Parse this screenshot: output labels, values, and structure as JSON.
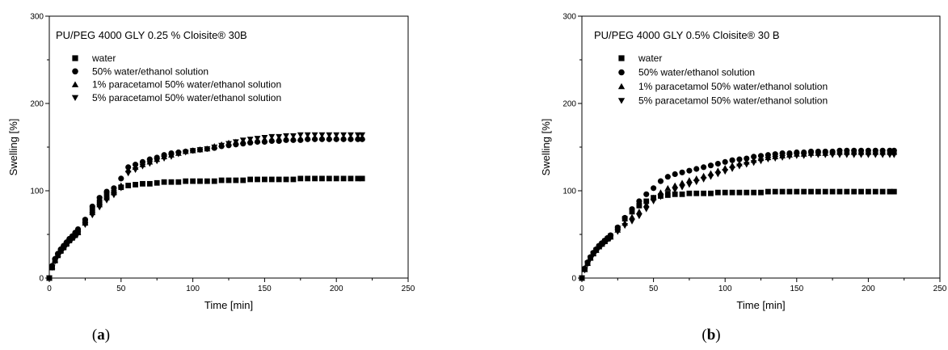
{
  "chart_data": [
    {
      "type": "scatter",
      "panel_label": "a",
      "title": "PU/PEG 4000 GLY 0.25 % Cloisite® 30B",
      "xlabel": "Time [min]",
      "ylabel": "Swelling [%]",
      "xlim": [
        0,
        250
      ],
      "ylim": [
        0,
        300
      ],
      "xticks": [
        "0",
        "50",
        "100",
        "150",
        "200",
        "250"
      ],
      "yticks": [
        "0",
        "100",
        "200",
        "300"
      ],
      "grid": false,
      "legend_position": "top-left",
      "x": [
        0,
        2,
        4,
        6,
        8,
        10,
        12,
        14,
        16,
        18,
        20,
        25,
        30,
        35,
        40,
        45,
        50,
        55,
        60,
        65,
        70,
        75,
        80,
        85,
        90,
        95,
        100,
        105,
        110,
        115,
        120,
        125,
        130,
        135,
        140,
        145,
        150,
        155,
        160,
        165,
        170,
        175,
        180,
        185,
        190,
        195,
        200,
        205,
        210,
        215,
        218
      ],
      "series": [
        {
          "name": "water",
          "marker": "square",
          "values": [
            0,
            12,
            20,
            26,
            31,
            35,
            39,
            43,
            46,
            49,
            53,
            64,
            78,
            87,
            95,
            98,
            104,
            106,
            107,
            108,
            108,
            109,
            110,
            110,
            110,
            111,
            111,
            111,
            111,
            111,
            112,
            112,
            112,
            112,
            113,
            113,
            113,
            113,
            113,
            113,
            113,
            114,
            114,
            114,
            114,
            114,
            114,
            114,
            114,
            114,
            114
          ]
        },
        {
          "name": "50% water/ethanol solution",
          "marker": "circle",
          "values": [
            0,
            14,
            22,
            28,
            33,
            37,
            41,
            45,
            48,
            52,
            56,
            67,
            82,
            92,
            99,
            103,
            114,
            127,
            130,
            133,
            136,
            138,
            141,
            143,
            144,
            145,
            146,
            147,
            148,
            149,
            151,
            152,
            153,
            154,
            155,
            156,
            156,
            157,
            157,
            158,
            158,
            158,
            159,
            159,
            159,
            159,
            159,
            159,
            159,
            159,
            159
          ]
        },
        {
          "name": "1% paracetamol 50% water/ethanol solution",
          "marker": "triangle-up",
          "values": [
            0,
            13,
            21,
            27,
            32,
            36,
            40,
            44,
            47,
            50,
            52,
            63,
            75,
            84,
            92,
            98,
            106,
            124,
            127,
            130,
            133,
            136,
            139,
            141,
            143,
            145,
            146,
            147,
            148,
            151,
            153,
            155,
            156,
            157,
            158,
            158,
            159,
            159,
            160,
            160,
            160,
            160,
            161,
            161,
            161,
            161,
            161,
            161,
            161,
            161,
            161
          ]
        },
        {
          "name": "5% paracetamol 50% water/ethanol solution",
          "marker": "triangle-down",
          "values": [
            0,
            12,
            19,
            25,
            30,
            34,
            38,
            42,
            45,
            48,
            51,
            61,
            72,
            81,
            89,
            95,
            103,
            120,
            124,
            128,
            131,
            134,
            137,
            139,
            142,
            144,
            146,
            147,
            148,
            150,
            152,
            154,
            156,
            158,
            159,
            160,
            161,
            162,
            162,
            163,
            163,
            164,
            164,
            164,
            164,
            164,
            164,
            164,
            164,
            164,
            164
          ]
        }
      ]
    },
    {
      "type": "scatter",
      "panel_label": "b",
      "title": "PU/PEG 4000 GLY 0.5% Cloisite® 30 B",
      "xlabel": "Time [min]",
      "ylabel": "Swelling [%]",
      "xlim": [
        0,
        250
      ],
      "ylim": [
        0,
        300
      ],
      "xticks": [
        "0",
        "50",
        "100",
        "150",
        "200",
        "250"
      ],
      "yticks": [
        "0",
        "100",
        "200",
        "300"
      ],
      "grid": false,
      "legend_position": "top-left",
      "x": [
        0,
        2,
        4,
        6,
        8,
        10,
        12,
        14,
        16,
        18,
        20,
        25,
        30,
        35,
        40,
        45,
        50,
        55,
        60,
        65,
        70,
        75,
        80,
        85,
        90,
        95,
        100,
        105,
        110,
        115,
        120,
        125,
        130,
        135,
        140,
        145,
        150,
        155,
        160,
        165,
        170,
        175,
        180,
        185,
        190,
        195,
        200,
        205,
        210,
        215,
        218
      ],
      "series": [
        {
          "name": "water",
          "marker": "square",
          "values": [
            0,
            10,
            17,
            23,
            28,
            32,
            36,
            39,
            42,
            45,
            48,
            57,
            68,
            76,
            83,
            88,
            92,
            94,
            95,
            96,
            96,
            97,
            97,
            97,
            97,
            98,
            98,
            98,
            98,
            98,
            98,
            98,
            99,
            99,
            99,
            99,
            99,
            99,
            99,
            99,
            99,
            99,
            99,
            99,
            99,
            99,
            99,
            99,
            99,
            99,
            99
          ]
        },
        {
          "name": "50% water/ethanol solution",
          "marker": "circle",
          "values": [
            0,
            11,
            18,
            24,
            29,
            33,
            37,
            40,
            43,
            46,
            49,
            58,
            69,
            79,
            88,
            96,
            103,
            111,
            116,
            119,
            121,
            123,
            125,
            127,
            129,
            131,
            133,
            135,
            136,
            137,
            139,
            140,
            141,
            142,
            143,
            143,
            144,
            144,
            145,
            145,
            145,
            145,
            146,
            146,
            146,
            146,
            146,
            146,
            146,
            146,
            146
          ]
        },
        {
          "name": "1% paracetamol 50% water/ethanol solution",
          "marker": "triangle-up",
          "values": [
            0,
            10,
            17,
            23,
            28,
            32,
            36,
            39,
            42,
            45,
            47,
            55,
            63,
            70,
            76,
            84,
            92,
            98,
            103,
            106,
            109,
            112,
            114,
            117,
            120,
            123,
            126,
            129,
            131,
            133,
            135,
            137,
            138,
            139,
            140,
            141,
            142,
            142,
            143,
            143,
            143,
            144,
            144,
            144,
            144,
            144,
            144,
            144,
            144,
            144,
            144
          ]
        },
        {
          "name": "5% paracetamol 50% water/ethanol solution",
          "marker": "triangle-down",
          "values": [
            0,
            9,
            16,
            22,
            27,
            31,
            35,
            38,
            41,
            44,
            46,
            53,
            60,
            65,
            71,
            79,
            88,
            93,
            97,
            101,
            104,
            107,
            110,
            113,
            116,
            119,
            122,
            125,
            128,
            130,
            132,
            134,
            136,
            137,
            138,
            139,
            140,
            140,
            141,
            141,
            141,
            141,
            141,
            141,
            141,
            141,
            141,
            141,
            141,
            141,
            141
          ]
        }
      ]
    }
  ]
}
